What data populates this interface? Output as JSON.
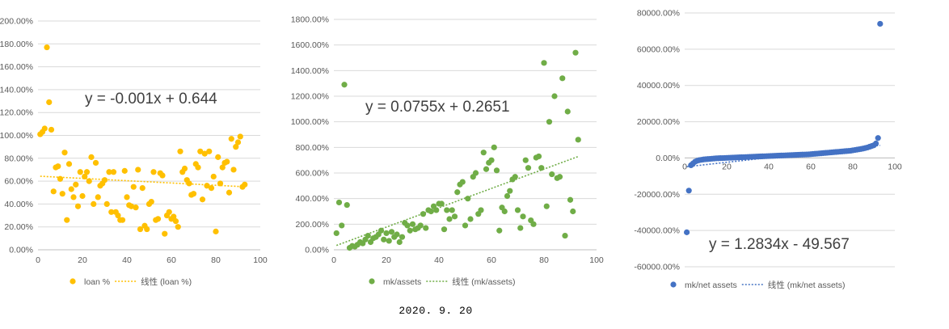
{
  "footer_date": "2020. 9. 20",
  "chart_data": [
    {
      "type": "scatter",
      "xlim": [
        0,
        100
      ],
      "ylim": [
        0,
        2
      ],
      "x_ticks": [
        0,
        20,
        40,
        60,
        80,
        100
      ],
      "y_ticks": [
        0,
        0.2,
        0.4,
        0.6,
        0.8,
        1.0,
        1.2,
        1.4,
        1.6,
        1.8,
        2.0
      ],
      "y_format": "percent",
      "grid": "horizontal",
      "legend": "bottom",
      "color": "#FFC000",
      "series_name": "loan %",
      "trend_name": "线性 (loan %)",
      "equation": "y = -0.001x + 0.644",
      "trend": {
        "slope": -0.001,
        "intercept": 0.644
      },
      "x": [
        1,
        2,
        3,
        4,
        5,
        6,
        7,
        8,
        9,
        10,
        11,
        12,
        13,
        14,
        15,
        16,
        17,
        18,
        19,
        20,
        21,
        22,
        23,
        24,
        25,
        26,
        27,
        28,
        29,
        30,
        31,
        32,
        33,
        34,
        35,
        36,
        37,
        38,
        39,
        40,
        41,
        42,
        43,
        44,
        45,
        46,
        47,
        48,
        49,
        50,
        51,
        52,
        53,
        54,
        55,
        56,
        57,
        58,
        59,
        60,
        61,
        62,
        63,
        64,
        65,
        66,
        67,
        68,
        69,
        70,
        71,
        72,
        73,
        74,
        75,
        76,
        77,
        78,
        79,
        80,
        81,
        82,
        83,
        84,
        85,
        86,
        87,
        88,
        89,
        90,
        91,
        92,
        93
      ],
      "y": [
        1.01,
        1.03,
        1.06,
        1.77,
        1.29,
        1.05,
        0.51,
        0.72,
        0.73,
        0.62,
        0.49,
        0.85,
        0.26,
        0.75,
        0.53,
        0.46,
        0.57,
        0.38,
        0.68,
        0.47,
        0.64,
        0.68,
        0.6,
        0.81,
        0.4,
        0.76,
        0.46,
        0.56,
        0.58,
        0.61,
        0.4,
        0.68,
        0.33,
        0.68,
        0.33,
        0.3,
        0.26,
        0.26,
        0.69,
        0.46,
        0.39,
        0.38,
        0.55,
        0.37,
        0.7,
        0.18,
        0.54,
        0.21,
        0.18,
        0.4,
        0.42,
        0.68,
        0.26,
        0.27,
        0.67,
        0.65,
        0.14,
        0.3,
        0.33,
        0.27,
        0.29,
        0.25,
        0.2,
        0.86,
        0.68,
        0.71,
        0.61,
        0.58,
        0.48,
        0.49,
        0.75,
        0.72,
        0.86,
        0.44,
        0.84,
        0.56,
        0.86,
        0.54,
        0.64,
        0.16,
        0.81,
        0.58,
        0.72,
        0.76,
        0.77,
        0.5,
        0.97,
        0.7,
        0.9,
        0.94,
        0.99,
        0.55,
        0.57
      ]
    },
    {
      "type": "scatter",
      "xlim": [
        0,
        100
      ],
      "ylim": [
        0,
        18
      ],
      "x_ticks": [
        0,
        20,
        40,
        60,
        80,
        100
      ],
      "y_ticks": [
        0,
        2,
        4,
        6,
        8,
        10,
        12,
        14,
        16,
        18
      ],
      "y_format": "percent",
      "grid": "horizontal",
      "legend": "bottom",
      "color": "#70AD47",
      "series_name": "mk/assets",
      "trend_name": "线性 (mk/assets)",
      "equation": "y = 0.0755x + 0.2651",
      "trend": {
        "slope": 0.0755,
        "intercept": 0.2651
      },
      "x": [
        1,
        2,
        3,
        4,
        5,
        6,
        7,
        8,
        9,
        10,
        11,
        12,
        13,
        14,
        15,
        16,
        17,
        18,
        19,
        20,
        21,
        22,
        23,
        24,
        25,
        26,
        27,
        28,
        29,
        30,
        31,
        32,
        33,
        34,
        35,
        36,
        37,
        38,
        39,
        40,
        41,
        42,
        43,
        44,
        45,
        46,
        47,
        48,
        49,
        50,
        51,
        52,
        53,
        54,
        55,
        56,
        57,
        58,
        59,
        60,
        61,
        62,
        63,
        64,
        65,
        66,
        67,
        68,
        69,
        70,
        71,
        72,
        73,
        74,
        75,
        76,
        77,
        78,
        79,
        80,
        81,
        82,
        83,
        84,
        85,
        86,
        87,
        88,
        89,
        90,
        91,
        92,
        93
      ],
      "y": [
        1.3,
        3.7,
        1.9,
        12.9,
        3.5,
        0.15,
        0.3,
        0.25,
        0.4,
        0.6,
        0.5,
        0.8,
        1.1,
        0.6,
        0.9,
        1.0,
        1.2,
        1.5,
        0.8,
        1.3,
        0.7,
        1.4,
        1.0,
        1.2,
        0.6,
        1.0,
        2.1,
        1.9,
        1.5,
        2.0,
        1.6,
        1.7,
        1.9,
        2.8,
        1.7,
        3.1,
        3.0,
        3.4,
        3.1,
        3.6,
        3.6,
        1.6,
        3.1,
        2.4,
        3.1,
        2.6,
        4.5,
        5.1,
        5.3,
        1.9,
        4.0,
        2.4,
        5.7,
        6.0,
        2.8,
        3.1,
        7.6,
        6.3,
        6.8,
        7.0,
        8.0,
        6.2,
        1.5,
        3.3,
        3.0,
        4.2,
        4.6,
        5.5,
        5.7,
        3.1,
        1.7,
        2.6,
        7.0,
        6.4,
        2.3,
        2.0,
        7.2,
        7.3,
        6.4,
        14.6,
        3.4,
        10.0,
        5.9,
        12.0,
        5.6,
        5.7,
        13.4,
        1.1,
        10.8,
        3.9,
        3.0,
        15.4,
        8.6
      ]
    },
    {
      "type": "scatter",
      "xlim": [
        0,
        100
      ],
      "ylim": [
        -600,
        800
      ],
      "x_ticks": [
        0,
        20,
        40,
        60,
        80,
        100
      ],
      "y_ticks": [
        -600,
        -400,
        -200,
        0,
        200,
        400,
        600,
        800
      ],
      "y_format": "percent",
      "grid": "horizontal",
      "legend": "bottom",
      "color": "#4472C4",
      "series_name": "mk/net assets",
      "trend_name": "线性 (mk/net assets)",
      "equation": "y = 1.2834x - 49.567",
      "trend": {
        "slope": 1.2834,
        "intercept": -49.567
      },
      "x": [
        1,
        2,
        3,
        4,
        5,
        6,
        7,
        8,
        9,
        10,
        11,
        12,
        13,
        14,
        15,
        16,
        17,
        18,
        19,
        20,
        21,
        22,
        23,
        24,
        25,
        26,
        27,
        28,
        29,
        30,
        31,
        32,
        33,
        34,
        35,
        36,
        37,
        38,
        39,
        40,
        41,
        42,
        43,
        44,
        45,
        46,
        47,
        48,
        49,
        50,
        51,
        52,
        53,
        54,
        55,
        56,
        57,
        58,
        59,
        60,
        61,
        62,
        63,
        64,
        65,
        66,
        67,
        68,
        69,
        70,
        71,
        72,
        73,
        74,
        75,
        76,
        77,
        78,
        79,
        80,
        81,
        82,
        83,
        84,
        85,
        86,
        87,
        88,
        89,
        90,
        91,
        92,
        93
      ],
      "y": [
        -410,
        -180,
        -40,
        -30,
        -20,
        -15,
        -12,
        -10,
        -8,
        -7,
        -6,
        -5,
        -4,
        -3,
        -2,
        -1.5,
        -1,
        -0.5,
        0,
        0.5,
        1,
        1.5,
        2,
        2.5,
        3,
        3.5,
        4,
        4.5,
        5,
        5.5,
        6,
        6.5,
        7,
        7.5,
        8,
        8.5,
        9,
        9.5,
        10,
        10.5,
        11,
        11.5,
        12,
        12.5,
        13,
        13.5,
        14,
        14.5,
        15,
        15.5,
        16,
        16.5,
        17,
        17.5,
        18,
        18.5,
        19,
        19.5,
        20,
        21,
        22,
        23,
        24,
        25,
        26,
        27,
        28,
        29,
        30,
        31,
        32,
        33,
        34,
        35,
        36,
        37,
        38,
        39,
        40,
        42,
        44,
        46,
        48,
        50,
        52,
        55,
        58,
        62,
        66,
        70,
        80,
        110,
        740
      ]
    }
  ]
}
